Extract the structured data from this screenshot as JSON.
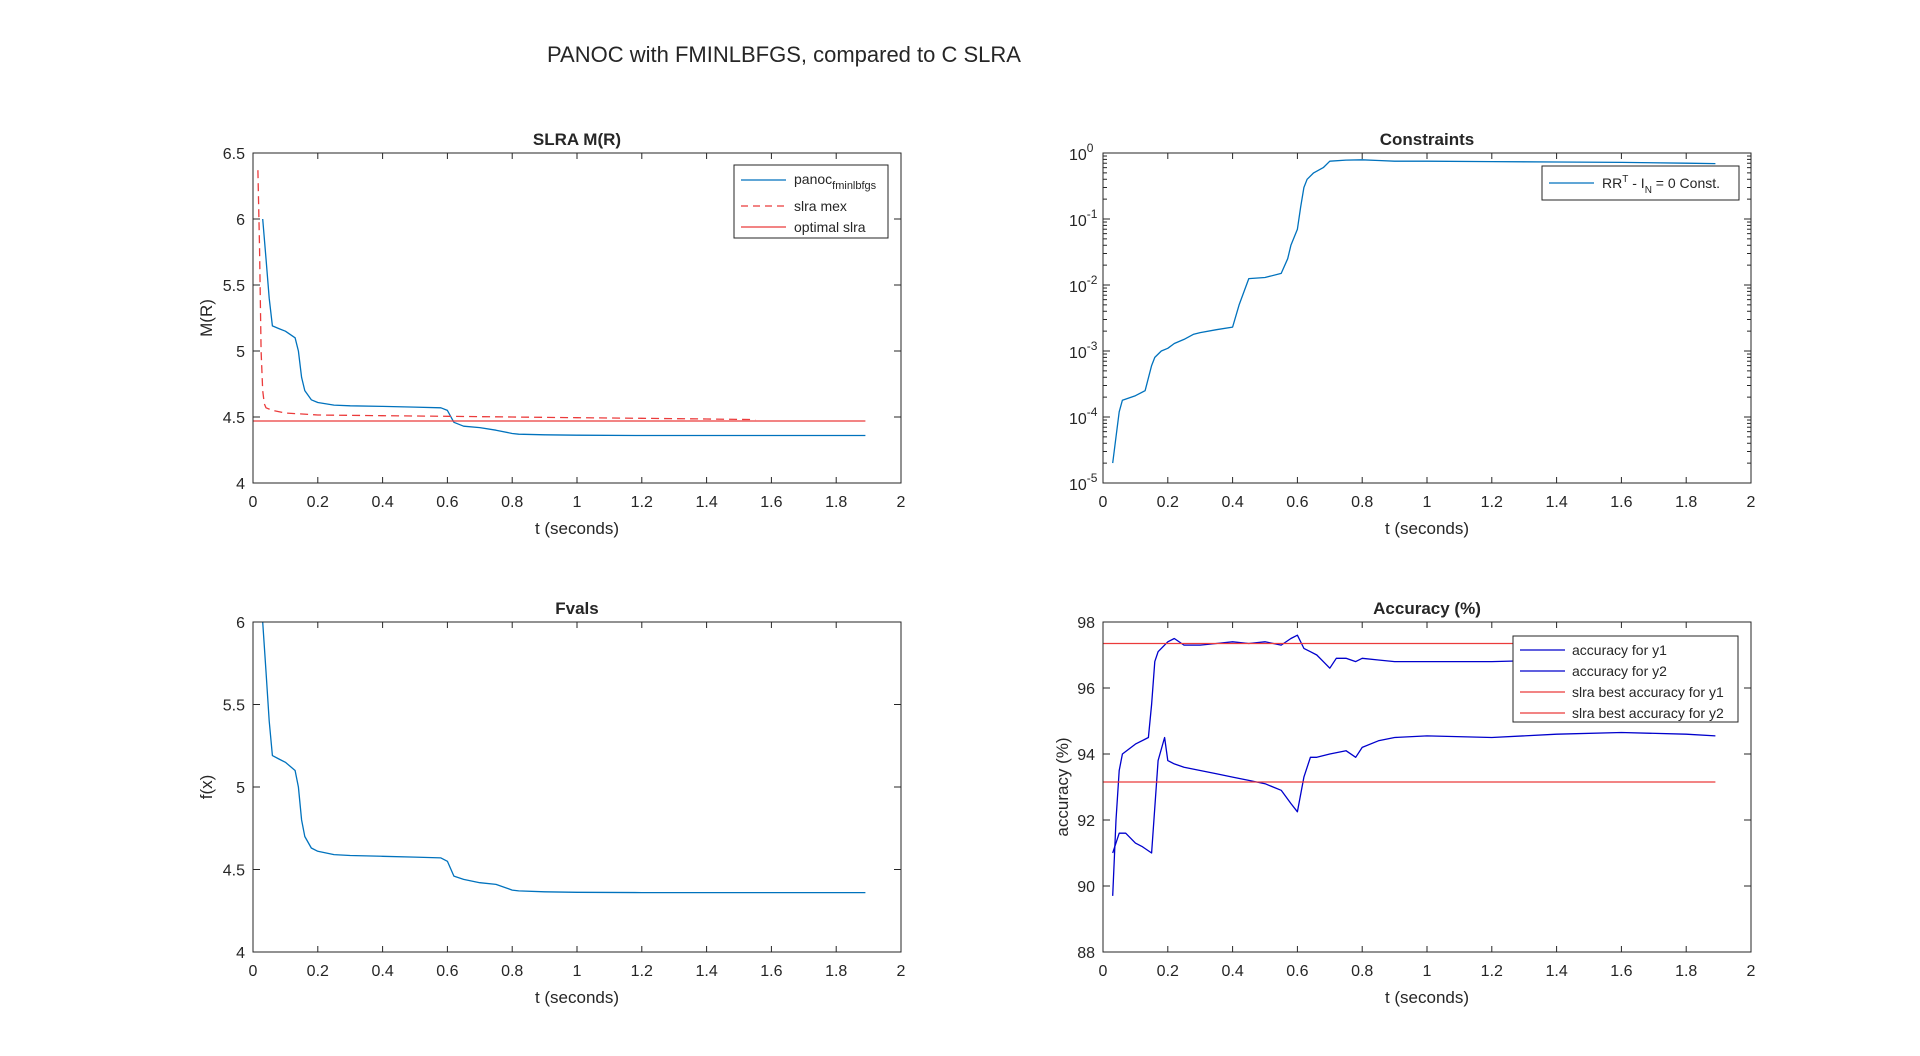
{
  "figure": {
    "title": "PANOC with FMINLBFGS, compared to C SLRA"
  },
  "chart_data": [
    {
      "id": "mr",
      "type": "line",
      "title": "SLRA M(R)",
      "xlabel": "t (seconds)",
      "ylabel": "M(R)",
      "xlim": [
        0,
        2
      ],
      "ylim": [
        4,
        6.5
      ],
      "xticks": [
        "0",
        "0.2",
        "0.4",
        "0.6",
        "0.8",
        "1",
        "1.2",
        "1.4",
        "1.6",
        "1.8",
        "2"
      ],
      "yticks": [
        "4",
        "4.5",
        "5",
        "5.5",
        "6",
        "6.5"
      ],
      "legend_position": "top-right",
      "series": [
        {
          "name": "panoc",
          "name_sub": "fminlbfgs",
          "color": "#0072BD",
          "dash": "solid",
          "x": [
            0.03,
            0.04,
            0.05,
            0.06,
            0.08,
            0.1,
            0.13,
            0.14,
            0.15,
            0.16,
            0.18,
            0.2,
            0.25,
            0.3,
            0.4,
            0.5,
            0.58,
            0.6,
            0.62,
            0.65,
            0.7,
            0.75,
            0.8,
            0.82,
            0.9,
            1.0,
            1.2,
            1.4,
            1.6,
            1.8,
            1.89
          ],
          "y": [
            6.0,
            5.7,
            5.4,
            5.19,
            5.17,
            5.15,
            5.1,
            5.0,
            4.8,
            4.7,
            4.63,
            4.61,
            4.59,
            4.585,
            4.58,
            4.575,
            4.57,
            4.55,
            4.46,
            4.43,
            4.42,
            4.4,
            4.375,
            4.37,
            4.365,
            4.362,
            4.36,
            4.36,
            4.36,
            4.36,
            4.36
          ]
        },
        {
          "name": "slra mex",
          "color": "#EB3B3B",
          "dash": "dashed",
          "x": [
            0.015,
            0.02,
            0.025,
            0.03,
            0.035,
            0.04,
            0.06,
            0.1,
            0.2,
            0.4,
            0.6,
            0.8,
            1.0,
            1.2,
            1.4,
            1.55
          ],
          "y": [
            6.37,
            5.8,
            5.0,
            4.7,
            4.6,
            4.57,
            4.55,
            4.53,
            4.515,
            4.51,
            4.505,
            4.5,
            4.495,
            4.49,
            4.485,
            4.48
          ]
        },
        {
          "name": "optimal slra",
          "color": "#EB3B3B",
          "dash": "solid",
          "x": [
            0,
            1.89
          ],
          "y": [
            4.47,
            4.47
          ]
        }
      ]
    },
    {
      "id": "constraints",
      "type": "line",
      "title": "Constraints",
      "xlabel": "t (seconds)",
      "ylabel": "",
      "xlim": [
        0,
        2
      ],
      "ylim": [
        1e-05,
        1
      ],
      "yscale": "log",
      "xticks": [
        "0",
        "0.2",
        "0.4",
        "0.6",
        "0.8",
        "1",
        "1.2",
        "1.4",
        "1.6",
        "1.8",
        "2"
      ],
      "ytick_exponents": [
        "-5",
        "-4",
        "-3",
        "-2",
        "-1",
        "0"
      ],
      "ytick_base": "10",
      "legend_position": "top-right",
      "series": [
        {
          "name_parts": [
            "RR",
            "T",
            " - I",
            "N",
            " = 0 Const."
          ],
          "color": "#0072BD",
          "dash": "solid",
          "x": [
            0.03,
            0.04,
            0.05,
            0.06,
            0.1,
            0.13,
            0.15,
            0.16,
            0.18,
            0.2,
            0.22,
            0.25,
            0.28,
            0.3,
            0.35,
            0.4,
            0.42,
            0.45,
            0.5,
            0.55,
            0.57,
            0.58,
            0.6,
            0.61,
            0.62,
            0.63,
            0.65,
            0.68,
            0.7,
            0.75,
            0.8,
            0.85,
            0.9,
            1.0,
            1.2,
            1.4,
            1.6,
            1.8,
            1.89
          ],
          "y": [
            2e-05,
            5e-05,
            0.00012,
            0.00018,
            0.00021,
            0.00025,
            0.0006,
            0.0008,
            0.001,
            0.0011,
            0.0013,
            0.0015,
            0.0018,
            0.0019,
            0.0021,
            0.0023,
            0.005,
            0.0125,
            0.013,
            0.015,
            0.025,
            0.04,
            0.07,
            0.15,
            0.3,
            0.4,
            0.5,
            0.6,
            0.75,
            0.78,
            0.79,
            0.77,
            0.75,
            0.75,
            0.74,
            0.73,
            0.72,
            0.7,
            0.69
          ]
        }
      ]
    },
    {
      "id": "fvals",
      "type": "line",
      "title": "Fvals",
      "xlabel": "t (seconds)",
      "ylabel": "f(x)",
      "xlim": [
        0,
        2
      ],
      "ylim": [
        4,
        6
      ],
      "xticks": [
        "0",
        "0.2",
        "0.4",
        "0.6",
        "0.8",
        "1",
        "1.2",
        "1.4",
        "1.6",
        "1.8",
        "2"
      ],
      "yticks": [
        "4",
        "4.5",
        "5",
        "5.5",
        "6"
      ],
      "series": [
        {
          "name": "",
          "color": "#0072BD",
          "dash": "solid",
          "x": [
            0.03,
            0.04,
            0.05,
            0.06,
            0.08,
            0.1,
            0.13,
            0.14,
            0.15,
            0.16,
            0.18,
            0.2,
            0.25,
            0.3,
            0.4,
            0.5,
            0.58,
            0.6,
            0.62,
            0.65,
            0.7,
            0.75,
            0.8,
            0.82,
            0.9,
            1.0,
            1.2,
            1.4,
            1.6,
            1.8,
            1.89
          ],
          "y": [
            6.0,
            5.7,
            5.4,
            5.19,
            5.17,
            5.15,
            5.1,
            5.0,
            4.8,
            4.7,
            4.63,
            4.61,
            4.59,
            4.585,
            4.58,
            4.575,
            4.57,
            4.55,
            4.46,
            4.44,
            4.42,
            4.41,
            4.375,
            4.37,
            4.365,
            4.362,
            4.36,
            4.36,
            4.36,
            4.36,
            4.36
          ]
        }
      ]
    },
    {
      "id": "accuracy",
      "type": "line",
      "title": "Accuracy (%)",
      "xlabel": "t (seconds)",
      "ylabel": "accuracy (%)",
      "xlim": [
        0,
        2
      ],
      "ylim": [
        88,
        98
      ],
      "xticks": [
        "0",
        "0.2",
        "0.4",
        "0.6",
        "0.8",
        "1",
        "1.2",
        "1.4",
        "1.6",
        "1.8",
        "2"
      ],
      "yticks": [
        "88",
        "90",
        "92",
        "94",
        "96",
        "98"
      ],
      "legend_position": "top-right",
      "series": [
        {
          "name": "accuracy for y1",
          "color": "#0000CC",
          "dash": "solid",
          "x": [
            0.03,
            0.04,
            0.05,
            0.06,
            0.1,
            0.14,
            0.15,
            0.16,
            0.17,
            0.18,
            0.2,
            0.22,
            0.25,
            0.3,
            0.35,
            0.4,
            0.45,
            0.5,
            0.55,
            0.58,
            0.6,
            0.62,
            0.64,
            0.66,
            0.68,
            0.7,
            0.72,
            0.75,
            0.78,
            0.8,
            0.85,
            0.9,
            1.0,
            1.2,
            1.4,
            1.6,
            1.8,
            1.89
          ],
          "y": [
            89.7,
            92.0,
            93.5,
            94.0,
            94.3,
            94.5,
            95.5,
            96.8,
            97.1,
            97.2,
            97.4,
            97.5,
            97.3,
            97.3,
            97.35,
            97.4,
            97.35,
            97.4,
            97.3,
            97.5,
            97.6,
            97.2,
            97.1,
            97.0,
            96.8,
            96.6,
            96.9,
            96.9,
            96.8,
            96.9,
            96.85,
            96.8,
            96.8,
            96.8,
            96.85,
            96.85,
            96.85,
            96.85
          ]
        },
        {
          "name": "accuracy for y2",
          "color": "#0000CC",
          "dash": "solid",
          "x": [
            0.03,
            0.05,
            0.07,
            0.1,
            0.12,
            0.15,
            0.17,
            0.19,
            0.2,
            0.22,
            0.25,
            0.3,
            0.35,
            0.4,
            0.45,
            0.5,
            0.55,
            0.58,
            0.6,
            0.62,
            0.64,
            0.66,
            0.7,
            0.75,
            0.78,
            0.8,
            0.85,
            0.9,
            1.0,
            1.2,
            1.4,
            1.6,
            1.8,
            1.89
          ],
          "y": [
            91.0,
            91.6,
            91.6,
            91.3,
            91.2,
            91.0,
            93.8,
            94.5,
            93.8,
            93.7,
            93.6,
            93.5,
            93.4,
            93.3,
            93.2,
            93.1,
            92.9,
            92.5,
            92.25,
            93.3,
            93.9,
            93.9,
            94.0,
            94.1,
            93.9,
            94.2,
            94.4,
            94.5,
            94.55,
            94.5,
            94.6,
            94.65,
            94.6,
            94.55
          ]
        },
        {
          "name": "slra best accuracy for y1",
          "color": "#EB3B3B",
          "dash": "solid",
          "x": [
            0,
            1.89
          ],
          "y": [
            97.35,
            97.35
          ]
        },
        {
          "name": "slra best accuracy for y2",
          "color": "#EB3B3B",
          "dash": "solid",
          "x": [
            0,
            1.89
          ],
          "y": [
            93.15,
            93.15
          ]
        }
      ]
    }
  ]
}
